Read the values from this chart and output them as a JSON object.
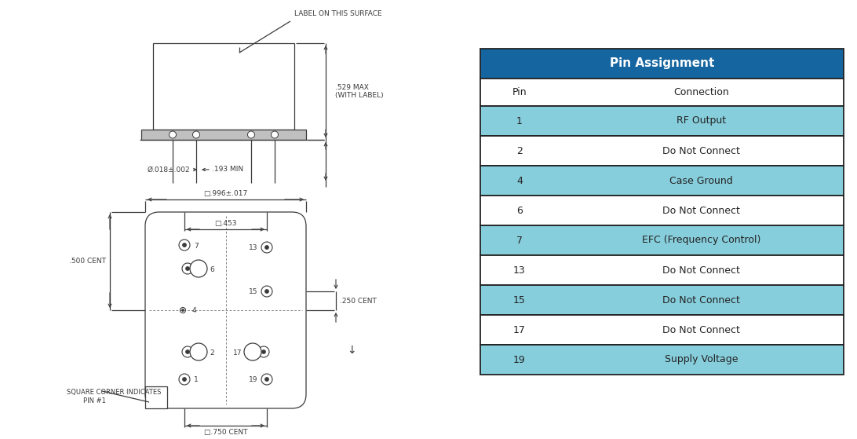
{
  "bg_color": "#ffffff",
  "table_header_bg": "#1565a0",
  "table_header_text": "#ffffff",
  "table_row_bg_alt": "#87cedc",
  "table_row_bg_white": "#ffffff",
  "table_border": "#222222",
  "table_text": "#222222",
  "table_title": "Pin Assignment",
  "table_col1": "Pin",
  "table_col2": "Connection",
  "table_data": [
    [
      "1",
      "RF Output",
      true
    ],
    [
      "2",
      "Do Not Connect",
      false
    ],
    [
      "4",
      "Case Ground",
      true
    ],
    [
      "6",
      "Do Not Connect",
      false
    ],
    [
      "7",
      "EFC (Frequency Control)",
      true
    ],
    [
      "13",
      "Do Not Connect",
      false
    ],
    [
      "15",
      "Do Not Connect",
      true
    ],
    [
      "17",
      "Do Not Connect",
      false
    ],
    [
      "19",
      "Supply Voltage",
      true
    ]
  ],
  "lc": "#3a3a3a",
  "lc_dim": "#3a3a3a",
  "annotation_label_on_surface": "LABEL ON THIS SURFACE",
  "dim_529": ".529 MAX\n(WITH LABEL)",
  "dim_018": "Ø.018±.002",
  "dim_193": ".193 MIN",
  "dim_996": "□.996±.017",
  "dim_453": "□.453",
  "dim_500": ".500 CENT",
  "dim_250": ".250 CENT",
  "dim_750": "□.750 CENT",
  "note_square": "SQUARE CORNER INDICATES\n        PIN #1"
}
